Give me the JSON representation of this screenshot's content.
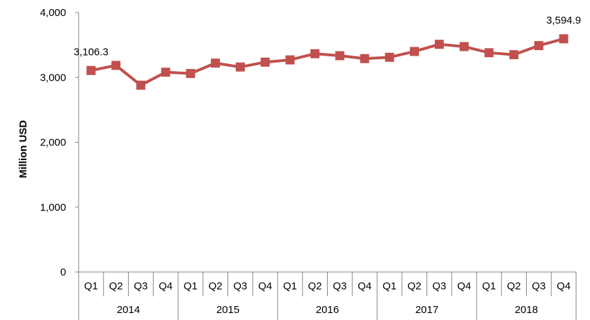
{
  "chart_data": {
    "type": "line",
    "ylabel": "Million USD",
    "ylim": [
      0,
      4000
    ],
    "y_ticks": [
      0,
      1000,
      2000,
      3000,
      4000
    ],
    "y_tick_labels": [
      "0",
      "1,000",
      "2,000",
      "3,000",
      "4,000"
    ],
    "gridlines": false,
    "legend": "none",
    "categories": [
      "Q1",
      "Q2",
      "Q3",
      "Q4",
      "Q1",
      "Q2",
      "Q3",
      "Q4",
      "Q1",
      "Q2",
      "Q3",
      "Q4",
      "Q1",
      "Q2",
      "Q3",
      "Q4",
      "Q1",
      "Q2",
      "Q3",
      "Q4"
    ],
    "groups": [
      {
        "label": "2014",
        "count": 4
      },
      {
        "label": "2015",
        "count": 4
      },
      {
        "label": "2016",
        "count": 4
      },
      {
        "label": "2017",
        "count": 4
      },
      {
        "label": "2018",
        "count": 4
      }
    ],
    "series": [
      {
        "values": [
          3106.3,
          3185,
          2880,
          3080,
          3060,
          3220,
          3160,
          3235,
          3270,
          3365,
          3335,
          3290,
          3310,
          3400,
          3510,
          3475,
          3380,
          3350,
          3490,
          3594.9
        ],
        "color": "#C0504D"
      }
    ],
    "data_labels": [
      {
        "index": 0,
        "text": "3,106.3"
      },
      {
        "index": 19,
        "text": "3,594.9"
      }
    ]
  }
}
